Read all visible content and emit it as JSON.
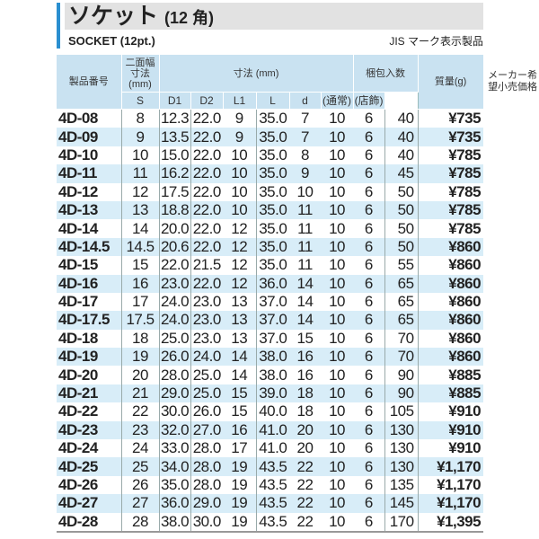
{
  "title": {
    "main": "ソケット",
    "sub": "(12 角)"
  },
  "subtitle": "SOCKET (12pt.)",
  "jis_note": "JIS マーク表示製品",
  "header": {
    "product": "製品番号",
    "width": "二面幅寸法(mm)",
    "dims": "寸法 (mm)",
    "pack": "梱包入数",
    "mass": "質量(g)",
    "price": "メーカー希望小売価格",
    "s": "S",
    "d1": "D1",
    "d2": "D2",
    "l1": "L1",
    "l": "L",
    "d": "d",
    "normal": "(通常)",
    "store": "(店飾)"
  },
  "rows": [
    [
      "4D-08",
      "8",
      "12.3",
      "22.0",
      "9",
      "35.0",
      "7",
      "10",
      "6",
      "40",
      "¥735"
    ],
    [
      "4D-09",
      "9",
      "13.5",
      "22.0",
      "9",
      "35.0",
      "7",
      "10",
      "6",
      "40",
      "¥735"
    ],
    [
      "4D-10",
      "10",
      "15.0",
      "22.0",
      "10",
      "35.0",
      "8",
      "10",
      "6",
      "40",
      "¥785"
    ],
    [
      "4D-11",
      "11",
      "16.2",
      "22.0",
      "10",
      "35.0",
      "9",
      "10",
      "6",
      "45",
      "¥785"
    ],
    [
      "4D-12",
      "12",
      "17.5",
      "22.0",
      "10",
      "35.0",
      "10",
      "10",
      "6",
      "50",
      "¥785"
    ],
    [
      "4D-13",
      "13",
      "18.8",
      "22.0",
      "10",
      "35.0",
      "11",
      "10",
      "6",
      "50",
      "¥785"
    ],
    [
      "4D-14",
      "14",
      "20.0",
      "22.0",
      "12",
      "35.0",
      "11",
      "10",
      "6",
      "50",
      "¥785"
    ],
    [
      "4D-14.5",
      "14.5",
      "20.6",
      "22.0",
      "12",
      "35.0",
      "11",
      "10",
      "6",
      "50",
      "¥860"
    ],
    [
      "4D-15",
      "15",
      "22.0",
      "21.5",
      "12",
      "35.0",
      "11",
      "10",
      "6",
      "55",
      "¥860"
    ],
    [
      "4D-16",
      "16",
      "23.0",
      "22.0",
      "12",
      "36.0",
      "14",
      "10",
      "6",
      "65",
      "¥860"
    ],
    [
      "4D-17",
      "17",
      "24.0",
      "23.0",
      "13",
      "37.0",
      "14",
      "10",
      "6",
      "65",
      "¥860"
    ],
    [
      "4D-17.5",
      "17.5",
      "24.0",
      "23.0",
      "13",
      "37.0",
      "14",
      "10",
      "6",
      "65",
      "¥860"
    ],
    [
      "4D-18",
      "18",
      "25.0",
      "23.0",
      "13",
      "37.0",
      "15",
      "10",
      "6",
      "70",
      "¥860"
    ],
    [
      "4D-19",
      "19",
      "26.0",
      "24.0",
      "14",
      "38.0",
      "16",
      "10",
      "6",
      "70",
      "¥860"
    ],
    [
      "4D-20",
      "20",
      "28.0",
      "25.0",
      "14",
      "38.0",
      "16",
      "10",
      "6",
      "90",
      "¥885"
    ],
    [
      "4D-21",
      "21",
      "29.0",
      "25.0",
      "15",
      "39.0",
      "18",
      "10",
      "6",
      "90",
      "¥885"
    ],
    [
      "4D-22",
      "22",
      "30.0",
      "26.0",
      "15",
      "40.0",
      "18",
      "10",
      "6",
      "105",
      "¥910"
    ],
    [
      "4D-23",
      "23",
      "32.0",
      "27.0",
      "16",
      "41.0",
      "20",
      "10",
      "6",
      "130",
      "¥910"
    ],
    [
      "4D-24",
      "24",
      "33.0",
      "28.0",
      "17",
      "41.0",
      "20",
      "10",
      "6",
      "130",
      "¥910"
    ],
    [
      "4D-25",
      "25",
      "34.0",
      "28.0",
      "19",
      "43.5",
      "22",
      "10",
      "6",
      "130",
      "¥1,170"
    ],
    [
      "4D-26",
      "26",
      "35.0",
      "28.0",
      "19",
      "43.5",
      "22",
      "10",
      "6",
      "135",
      "¥1,170"
    ],
    [
      "4D-27",
      "27",
      "36.0",
      "29.0",
      "19",
      "43.5",
      "22",
      "10",
      "6",
      "145",
      "¥1,170"
    ],
    [
      "4D-28",
      "28",
      "38.0",
      "30.0",
      "19",
      "43.5",
      "22",
      "10",
      "6",
      "170",
      "¥1,395"
    ]
  ]
}
